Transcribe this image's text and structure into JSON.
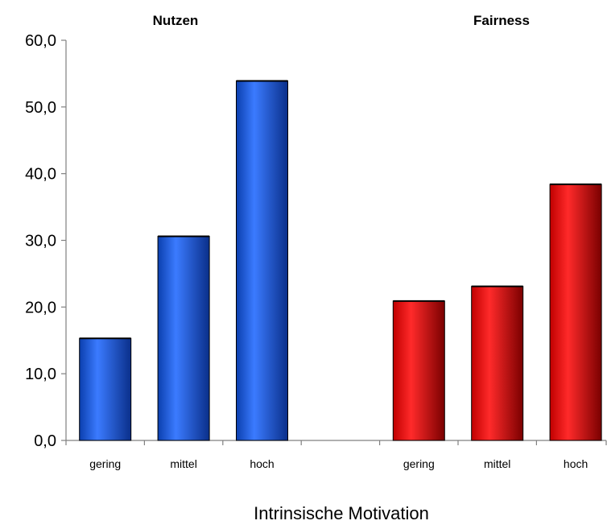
{
  "chart_data": {
    "type": "bar",
    "groups": [
      {
        "title": "Nutzen",
        "categories": [
          "gering",
          "mittel",
          "hoch"
        ],
        "values": [
          15.3,
          30.6,
          53.9
        ],
        "color": "#1f5fe6",
        "color_dark": "#0a2f8a"
      },
      {
        "title": "Fairness",
        "categories": [
          "gering",
          "mittel",
          "hoch"
        ],
        "values": [
          20.9,
          23.1,
          38.4
        ],
        "color": "#f01010",
        "color_dark": "#8a0000"
      }
    ],
    "xlabel": "Intrinsische Motivation",
    "ylabel": "",
    "ylim": [
      0,
      60
    ],
    "yticks": [
      "0,0",
      "10,0",
      "20,0",
      "30,0",
      "40,0",
      "50,0",
      "60,0"
    ],
    "grid": false,
    "legend": "none"
  }
}
